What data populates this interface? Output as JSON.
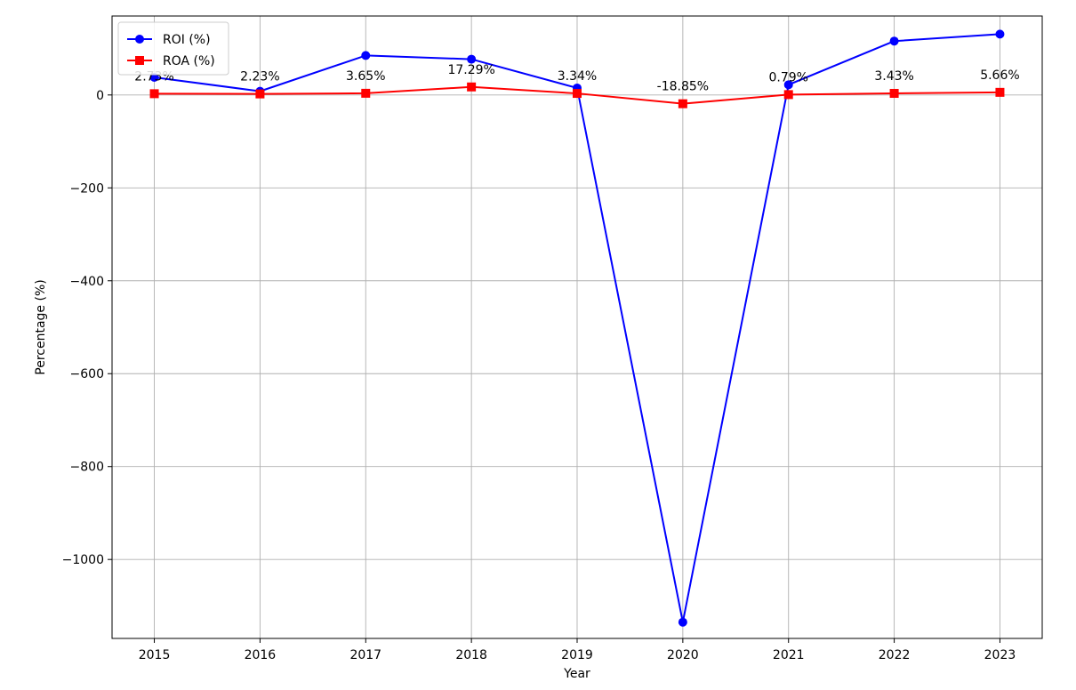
{
  "chart_data": {
    "type": "line",
    "title": "",
    "xlabel": "Year",
    "ylabel": "Percentage (%)",
    "x": [
      2015,
      2016,
      2017,
      2018,
      2019,
      2020,
      2021,
      2022,
      2023
    ],
    "ylim": [
      -1170,
      170
    ],
    "yticks": [
      0,
      -200,
      -400,
      -600,
      -800,
      -1000
    ],
    "ytick_labels": [
      "0",
      "−200",
      "−400",
      "−600",
      "−800",
      "−1000"
    ],
    "grid": true,
    "legend_position": "top-left",
    "series": [
      {
        "name": "ROI (%)",
        "color": "#0000ff",
        "marker": "circle",
        "values": [
          38,
          8,
          85,
          77,
          15,
          -1135,
          22,
          116,
          131
        ]
      },
      {
        "name": "ROA (%)",
        "color": "#ff0000",
        "marker": "square",
        "values": [
          2.73,
          2.23,
          3.65,
          17.29,
          3.34,
          -18.85,
          0.79,
          3.43,
          5.66
        ]
      }
    ],
    "annotations": [
      "2.73%",
      "2.23%",
      "3.65%",
      "17.29%",
      "3.34%",
      "-18.85%",
      "0.79%",
      "3.43%",
      "5.66%"
    ]
  }
}
